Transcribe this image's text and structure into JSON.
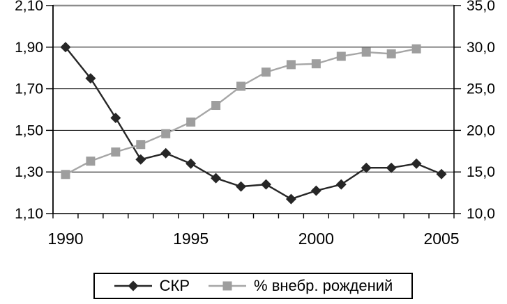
{
  "chart_data": {
    "type": "line",
    "title": "",
    "x_categories": [
      1990,
      1991,
      1992,
      1993,
      1994,
      1995,
      1996,
      1997,
      1998,
      1999,
      2000,
      2001,
      2002,
      2003,
      2004,
      2005
    ],
    "x_tick_labels": [
      {
        "index": 0,
        "label": "1990"
      },
      {
        "index": 5,
        "label": "1995"
      },
      {
        "index": 10,
        "label": "2000"
      },
      {
        "index": 15,
        "label": "2005"
      }
    ],
    "series": [
      {
        "name": "СКР",
        "axis": "left",
        "marker": "diamond",
        "line_color": "#262626",
        "marker_color": "#262626",
        "values": [
          1.9,
          1.75,
          1.56,
          1.36,
          1.39,
          1.34,
          1.27,
          1.23,
          1.24,
          1.17,
          1.21,
          1.24,
          1.32,
          1.32,
          1.34,
          1.29
        ]
      },
      {
        "name": "% внебр. рождений",
        "axis": "right",
        "marker": "square",
        "line_color": "#a6a6a6",
        "marker_color": "#9e9e9e",
        "values": [
          14.7,
          16.3,
          17.4,
          18.3,
          19.6,
          21.0,
          23.0,
          25.3,
          27.0,
          27.9,
          28.0,
          28.9,
          29.4,
          29.2,
          29.8,
          null
        ]
      }
    ],
    "left_axis": {
      "min": 1.1,
      "max": 2.1,
      "step": 0.2,
      "tick_labels_top_to_bottom": [
        "2,10",
        "1,90",
        "1,70",
        "1,50",
        "1,30",
        "1,10"
      ]
    },
    "right_axis": {
      "min": 10.0,
      "max": 35.0,
      "step": 5.0,
      "tick_labels_top_to_bottom": [
        "35,0",
        "30,0",
        "25,0",
        "20,0",
        "15,0",
        "10,0"
      ]
    },
    "grid": true,
    "legend_position": "bottom"
  },
  "legend": {
    "skr_label": "СКР",
    "nonmarital_label": "% внебр. рождений"
  },
  "colors": {
    "background": "#ffffff",
    "gridline": "#000000",
    "axis_line": "#000000",
    "top_border": "#8c8c8c",
    "skr_series": "#262626",
    "nonmarital_series": "#9e9e9e"
  }
}
